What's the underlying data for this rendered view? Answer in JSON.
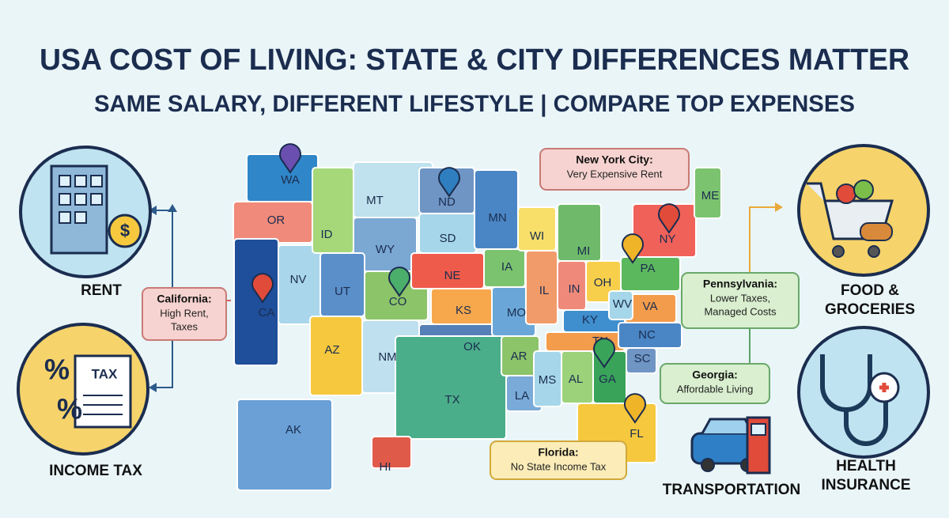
{
  "header": {
    "title": "USA COST OF LIVING: STATE & CITY DIFFERENCES MATTER",
    "subtitle": "SAME SALARY, DIFFERENT LIFESTYLE | COMPARE TOP EXPENSES"
  },
  "map": {
    "states": [
      "WA",
      "OR",
      "CA",
      "NV",
      "ID",
      "MT",
      "WY",
      "UT",
      "AZ",
      "NM",
      "CO",
      "ND",
      "SD",
      "NE",
      "KS",
      "OK",
      "TX",
      "MN",
      "IA",
      "MO",
      "AR",
      "LA",
      "WI",
      "IL",
      "MI",
      "IN",
      "OH",
      "KY",
      "TN",
      "MS",
      "AL",
      "GA",
      "FL",
      "SC",
      "NC",
      "VA",
      "WV",
      "PA",
      "NY",
      "ME",
      "AK",
      "HI"
    ]
  },
  "callouts": [
    {
      "title": "New York City:",
      "lines": [
        "Very Expensive Rent"
      ]
    },
    {
      "title": "California:",
      "lines": [
        "High Rent,",
        "Taxes"
      ]
    },
    {
      "title": "Pennsylvania:",
      "lines": [
        "Lower Taxes,",
        "Managed Costs"
      ]
    },
    {
      "title": "Georgia:",
      "lines": [
        "Affordable Living"
      ]
    },
    {
      "title": "Florida:",
      "lines": [
        "No State Income Tax"
      ]
    }
  ],
  "expenses": [
    {
      "lines": [
        "RENT"
      ]
    },
    {
      "lines": [
        "INCOME TAX"
      ]
    },
    {
      "lines": [
        "FOOD &",
        "GROCERIES"
      ]
    },
    {
      "lines": [
        "HEALTH",
        "INSURANCE"
      ]
    },
    {
      "lines": [
        "TRANSPORTATION"
      ]
    }
  ],
  "icons": {
    "coin": "$",
    "percent": "%",
    "tax_form": "TAX"
  }
}
